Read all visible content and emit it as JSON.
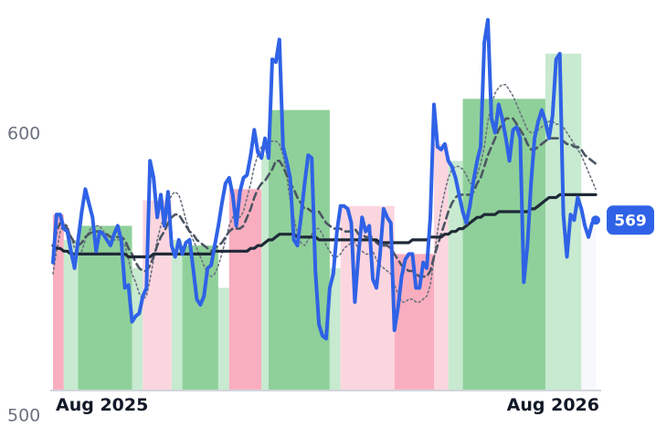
{
  "chart_data": {
    "type": "line",
    "title": "",
    "xlabel": "",
    "ylabel": "",
    "x_tick_labels": [
      "Aug 2025",
      "Aug 2026"
    ],
    "y_ticks": [
      {
        "value": 500,
        "label": "500"
      },
      {
        "value": 600,
        "label": "600"
      }
    ],
    "ylim": [
      497,
      647
    ],
    "grid": false,
    "last_value_label": "569",
    "colors": {
      "price_line": "#2f62e6",
      "long_ma": "#1f2937",
      "band_dashed": "#4b5563",
      "band_dotted": "#6b7280",
      "green_bar": "#8fd09a",
      "green_bar_light": "#c7ead0",
      "red_bar": "#f9aebf",
      "red_bar_light": "#fcd6df",
      "badge": "#2f62e6"
    },
    "series": [
      {
        "role": "price",
        "values": [
          554,
          571,
          571,
          566,
          565,
          558,
          552,
          562,
          572,
          580,
          575,
          570,
          558,
          565,
          564,
          562,
          560,
          564,
          567,
          562,
          545,
          546,
          533,
          535,
          536,
          542,
          545,
          590,
          584,
          570,
          578,
          567,
          579,
          560,
          556,
          562,
          557,
          561,
          562,
          552,
          541,
          539,
          542,
          552,
          553,
          560,
          567,
          575,
          582,
          584,
          578,
          567,
          579,
          584,
          585,
          592,
          601,
          593,
          591,
          598,
          591,
          626,
          625,
          633,
          595,
          590,
          584,
          562,
          560,
          570,
          582,
          592,
          591,
          551,
          532,
          528,
          527,
          545,
          550,
          565,
          574,
          574,
          573,
          568,
          540,
          557,
          570,
          565,
          567,
          548,
          545,
          557,
          573,
          570,
          568,
          530,
          538,
          549,
          555,
          557,
          557,
          545,
          545,
          554,
          552,
          570,
          610,
          595,
          594,
          596,
          590,
          588,
          584,
          578,
          572,
          568,
          574,
          583,
          590,
          595,
          632,
          640,
          605,
          600,
          610,
          605,
          598,
          590,
          601,
          602,
          598,
          547,
          560,
          582,
          598,
          604,
          608,
          604,
          598,
          606,
          626,
          628,
          571,
          556,
          571,
          569,
          577,
          573,
          567,
          563,
          568,
          569
        ]
      },
      {
        "role": "long_ma",
        "values": [
          560,
          559,
          559,
          558,
          558,
          557,
          557,
          557,
          557,
          557,
          557,
          557,
          557,
          557,
          557,
          557,
          557,
          557,
          557,
          557,
          557,
          556,
          556,
          556,
          556,
          556,
          556,
          556,
          557,
          557,
          557,
          557,
          557,
          557,
          557,
          557,
          557,
          557,
          557,
          557,
          557,
          557,
          557,
          557,
          557,
          558,
          558,
          558,
          558,
          558,
          558,
          558,
          558,
          558,
          558,
          559,
          559,
          560,
          560,
          561,
          562,
          562,
          563,
          564,
          564,
          564,
          564,
          564,
          563,
          563,
          563,
          563,
          563,
          563,
          562,
          562,
          562,
          562,
          562,
          562,
          562,
          562,
          562,
          562,
          562,
          562,
          562,
          562,
          562,
          562,
          562,
          561,
          561,
          561,
          561,
          561,
          561,
          561,
          561,
          561,
          562,
          562,
          562,
          562,
          562,
          563,
          563,
          563,
          563,
          564,
          564,
          565,
          565,
          566,
          566,
          567,
          568,
          569,
          570,
          570,
          571,
          571,
          571,
          571,
          572,
          572,
          572,
          572,
          572,
          572,
          572,
          572,
          572,
          573,
          573,
          574,
          575,
          576,
          577,
          577,
          577,
          578,
          578,
          578,
          578,
          578,
          578,
          578,
          578,
          578,
          578,
          578
        ]
      },
      {
        "role": "band_dashed",
        "values": [
          558,
          565,
          568,
          568,
          566,
          563,
          561,
          560,
          561,
          563,
          564,
          565,
          565,
          565,
          564,
          564,
          563,
          563,
          563,
          563,
          562,
          559,
          557,
          554,
          552,
          551,
          551,
          553,
          556,
          560,
          563,
          565,
          568,
          570,
          571,
          571,
          569,
          567,
          565,
          564,
          562,
          561,
          560,
          559,
          558,
          559,
          560,
          561,
          563,
          565,
          566,
          566,
          566,
          567,
          570,
          573,
          577,
          580,
          582,
          583,
          585,
          587,
          590,
          590,
          588,
          585,
          582,
          580,
          577,
          575,
          573,
          573,
          572,
          572,
          572,
          570,
          568,
          567,
          566,
          566,
          566,
          565,
          565,
          565,
          566,
          564,
          564,
          563,
          563,
          563,
          561,
          560,
          560,
          560,
          559,
          557,
          555,
          553,
          552,
          551,
          551,
          550,
          549,
          549,
          549,
          551,
          556,
          560,
          564,
          568,
          572,
          575,
          577,
          578,
          578,
          578,
          578,
          579,
          582,
          584,
          588,
          592,
          595,
          598,
          601,
          603,
          605,
          605,
          605,
          603,
          601,
          599,
          596,
          594,
          594,
          595,
          596,
          597,
          598,
          598,
          598,
          598,
          597,
          596,
          596,
          595,
          595,
          594,
          592,
          591,
          590,
          589
        ]
      },
      {
        "role": "band_dotted",
        "values": [
          550,
          558,
          565,
          568,
          567,
          563,
          559,
          557,
          558,
          562,
          565,
          567,
          567,
          567,
          565,
          564,
          563,
          562,
          562,
          562,
          560,
          555,
          550,
          547,
          543,
          541,
          542,
          548,
          555,
          562,
          567,
          570,
          574,
          578,
          579,
          578,
          574,
          569,
          565,
          562,
          559,
          556,
          553,
          550,
          549,
          550,
          553,
          557,
          562,
          567,
          570,
          571,
          570,
          572,
          577,
          582,
          588,
          592,
          595,
          596,
          597,
          597,
          597,
          596,
          592,
          585,
          576,
          570,
          564,
          561,
          560,
          562,
          564,
          566,
          566,
          564,
          560,
          558,
          556,
          556,
          557,
          559,
          560,
          561,
          561,
          559,
          558,
          557,
          557,
          558,
          555,
          553,
          552,
          551,
          550,
          546,
          543,
          540,
          540,
          541,
          541,
          540,
          540,
          541,
          542,
          546,
          555,
          565,
          573,
          579,
          584,
          587,
          588,
          588,
          587,
          585,
          582,
          582,
          585,
          589,
          595,
          604,
          610,
          614,
          616,
          617,
          617,
          615,
          613,
          610,
          607,
          604,
          601,
          600,
          600,
          601,
          602,
          603,
          604,
          604,
          603,
          603,
          602,
          600,
          598,
          596,
          594,
          592,
          589,
          586,
          583,
          580
        ]
      }
    ],
    "bars": [
      {
        "start": 0,
        "end": 3,
        "value": 571,
        "tone": "red"
      },
      {
        "start": 3,
        "end": 7,
        "value": 562,
        "tone": "green_light"
      },
      {
        "start": 7,
        "end": 22,
        "value": 567,
        "tone": "green"
      },
      {
        "start": 22,
        "end": 25,
        "value": 552,
        "tone": "green_light"
      },
      {
        "start": 25,
        "end": 33,
        "value": 576,
        "tone": "red_light"
      },
      {
        "start": 33,
        "end": 36,
        "value": 562,
        "tone": "green_light"
      },
      {
        "start": 36,
        "end": 46,
        "value": 560,
        "tone": "green"
      },
      {
        "start": 46,
        "end": 49,
        "value": 545,
        "tone": "green_light"
      },
      {
        "start": 49,
        "end": 58,
        "value": 580,
        "tone": "red"
      },
      {
        "start": 58,
        "end": 60,
        "value": 592,
        "tone": "green_light"
      },
      {
        "start": 60,
        "end": 77,
        "value": 608,
        "tone": "green"
      },
      {
        "start": 77,
        "end": 80,
        "value": 552,
        "tone": "green_light"
      },
      {
        "start": 80,
        "end": 95,
        "value": 574,
        "tone": "red_light"
      },
      {
        "start": 95,
        "end": 106,
        "value": 557,
        "tone": "red"
      },
      {
        "start": 106,
        "end": 110,
        "value": 596,
        "tone": "red_light"
      },
      {
        "start": 110,
        "end": 114,
        "value": 590,
        "tone": "green_light"
      },
      {
        "start": 114,
        "end": 137,
        "value": 612,
        "tone": "green"
      },
      {
        "start": 137,
        "end": 147,
        "value": 628,
        "tone": "green_light"
      },
      {
        "start": 147,
        "end": 154,
        "value": 569,
        "tone": "neutral"
      }
    ]
  }
}
